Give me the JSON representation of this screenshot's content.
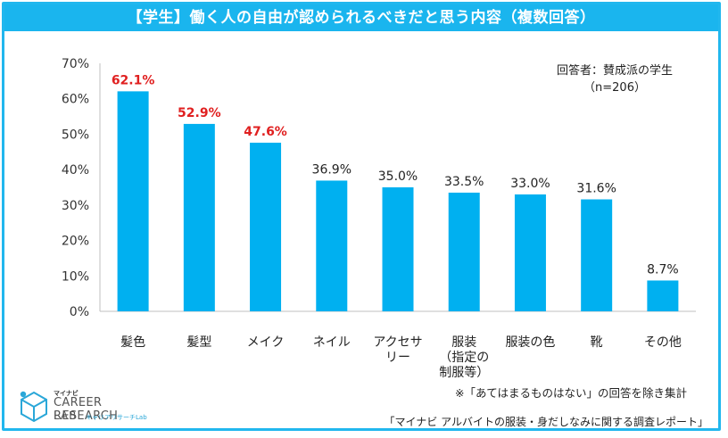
{
  "title": "【学生】働く人の自由が認められるべきだと思う内容（複数回答）",
  "respondent": {
    "line1": "回答者：賛成派の学生",
    "line2": "（n=206）"
  },
  "footnote": "※「あてはまるものはない」の回答を除き集計",
  "source": "「マイナビ アルバイトの服装・身だしなみに関する調査レポート」",
  "logo": {
    "top": "マイナビ",
    "main": "CAREER RESEARCH",
    "lab": "LAB",
    "sub": "キャリアリサーチLab"
  },
  "colors": {
    "bar": "#00b0f0",
    "highlight_label": "#e02020",
    "title_bg": "#1ab5ee"
  },
  "chart_data": {
    "type": "bar",
    "categories": [
      [
        "髪色"
      ],
      [
        "髪型"
      ],
      [
        "メイク"
      ],
      [
        "ネイル"
      ],
      [
        "アクセサ",
        "リー"
      ],
      [
        "服装",
        "（指定の",
        "制服等）"
      ],
      [
        "服装の色"
      ],
      [
        "靴"
      ],
      [
        "その他"
      ]
    ],
    "values": [
      62.1,
      52.9,
      47.6,
      36.9,
      35.0,
      33.5,
      33.0,
      31.6,
      8.7
    ],
    "value_labels": [
      "62.1%",
      "52.9%",
      "47.6%",
      "36.9%",
      "35.0%",
      "33.5%",
      "33.0%",
      "31.6%",
      "8.7%"
    ],
    "highlighted": [
      true,
      true,
      true,
      false,
      false,
      false,
      false,
      false,
      false
    ],
    "ylim": [
      0,
      70
    ],
    "yticks": [
      0,
      10,
      20,
      30,
      40,
      50,
      60,
      70
    ],
    "ytick_labels": [
      "0%",
      "10%",
      "20%",
      "30%",
      "40%",
      "50%",
      "60%",
      "70%"
    ],
    "xlabel": "",
    "ylabel": "",
    "grid": false
  }
}
